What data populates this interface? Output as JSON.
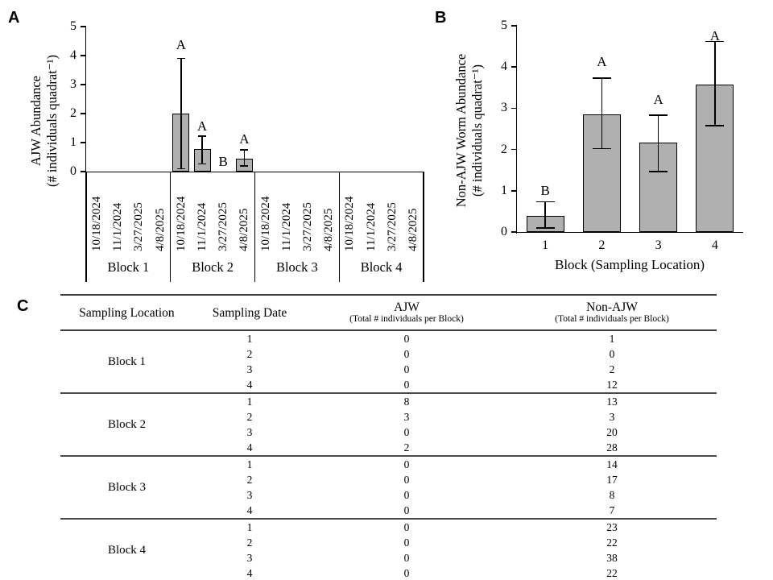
{
  "colors": {
    "bar_fill": "#b0b0b0",
    "bar_border": "#000000",
    "axis": "#000000",
    "rule_dark": "#3c3c3c",
    "rule_bottom": "#707070"
  },
  "chart_data": [
    {
      "id": "panel_a",
      "type": "bar",
      "panel_label": "A",
      "ylabel": [
        "AJW Abundance",
        "(# individuals quadrat⁻¹)"
      ],
      "ylim": [
        0,
        5
      ],
      "yticks": [
        0,
        1,
        2,
        3,
        4,
        5
      ],
      "group_labels": [
        "Block 1",
        "Block 2",
        "Block 3",
        "Block 4"
      ],
      "categories": [
        "10/18/2024",
        "11/1/2024",
        "3/27/2025",
        "4/8/2025"
      ],
      "values": [
        [
          0,
          0,
          0,
          0
        ],
        [
          2.0,
          0.77,
          0,
          0.45
        ],
        [
          0,
          0,
          0,
          0
        ],
        [
          0,
          0,
          0,
          0
        ]
      ],
      "err_low": [
        [
          null,
          null,
          null,
          null
        ],
        [
          0.1,
          0.27,
          null,
          0.2
        ],
        [
          null,
          null,
          null,
          null
        ],
        [
          null,
          null,
          null,
          null
        ]
      ],
      "err_high": [
        [
          null,
          null,
          null,
          null
        ],
        [
          3.9,
          1.22,
          null,
          0.75
        ],
        [
          null,
          null,
          null,
          null
        ],
        [
          null,
          null,
          null,
          null
        ]
      ],
      "letters": [
        [
          "",
          "",
          "",
          ""
        ],
        [
          "A",
          "A",
          "B",
          "A"
        ],
        [
          "",
          "",
          "",
          ""
        ],
        [
          "",
          "",
          "",
          ""
        ]
      ],
      "letter_y": [
        [
          null,
          null,
          null,
          null
        ],
        [
          4.35,
          1.55,
          0.32,
          1.12
        ],
        [
          null,
          null,
          null,
          null
        ],
        [
          null,
          null,
          null,
          null
        ]
      ],
      "legend": "none",
      "grid": false
    },
    {
      "id": "panel_b",
      "type": "bar",
      "panel_label": "B",
      "xlabel": "Block (Sampling Location)",
      "ylabel": [
        "Non-AJW Worm Abundance",
        "(# individuals quadrat⁻¹)"
      ],
      "ylim": [
        0,
        5
      ],
      "yticks": [
        0,
        1,
        2,
        3,
        4,
        5
      ],
      "categories": [
        "1",
        "2",
        "3",
        "4"
      ],
      "values": [
        0.4,
        2.85,
        2.17,
        3.57
      ],
      "err_low": [
        0.1,
        2.02,
        1.46,
        2.58
      ],
      "err_high": [
        0.73,
        3.73,
        2.83,
        4.62
      ],
      "letters": [
        "B",
        "A",
        "A",
        "A"
      ],
      "letter_y": [
        1.0,
        4.12,
        3.2,
        4.75
      ],
      "legend": "none",
      "grid": false
    },
    {
      "id": "panel_c",
      "type": "table",
      "panel_label": "C",
      "columns": [
        "Sampling Location",
        "Sampling Date",
        "AJW",
        "Non-AJW"
      ],
      "column_subs": [
        "",
        "",
        "(Total # individuals per Block)",
        "(Total # individuals per Block)"
      ],
      "blocks": [
        {
          "location": "Block 1",
          "rows": [
            [
              1,
              0,
              1
            ],
            [
              2,
              0,
              0
            ],
            [
              3,
              0,
              2
            ],
            [
              4,
              0,
              12
            ]
          ]
        },
        {
          "location": "Block 2",
          "rows": [
            [
              1,
              8,
              13
            ],
            [
              2,
              3,
              3
            ],
            [
              3,
              0,
              20
            ],
            [
              4,
              2,
              28
            ]
          ]
        },
        {
          "location": "Block 3",
          "rows": [
            [
              1,
              0,
              14
            ],
            [
              2,
              0,
              17
            ],
            [
              3,
              0,
              8
            ],
            [
              4,
              0,
              7
            ]
          ]
        },
        {
          "location": "Block 4",
          "rows": [
            [
              1,
              0,
              23
            ],
            [
              2,
              0,
              22
            ],
            [
              3,
              0,
              38
            ],
            [
              4,
              0,
              22
            ]
          ]
        }
      ]
    }
  ]
}
